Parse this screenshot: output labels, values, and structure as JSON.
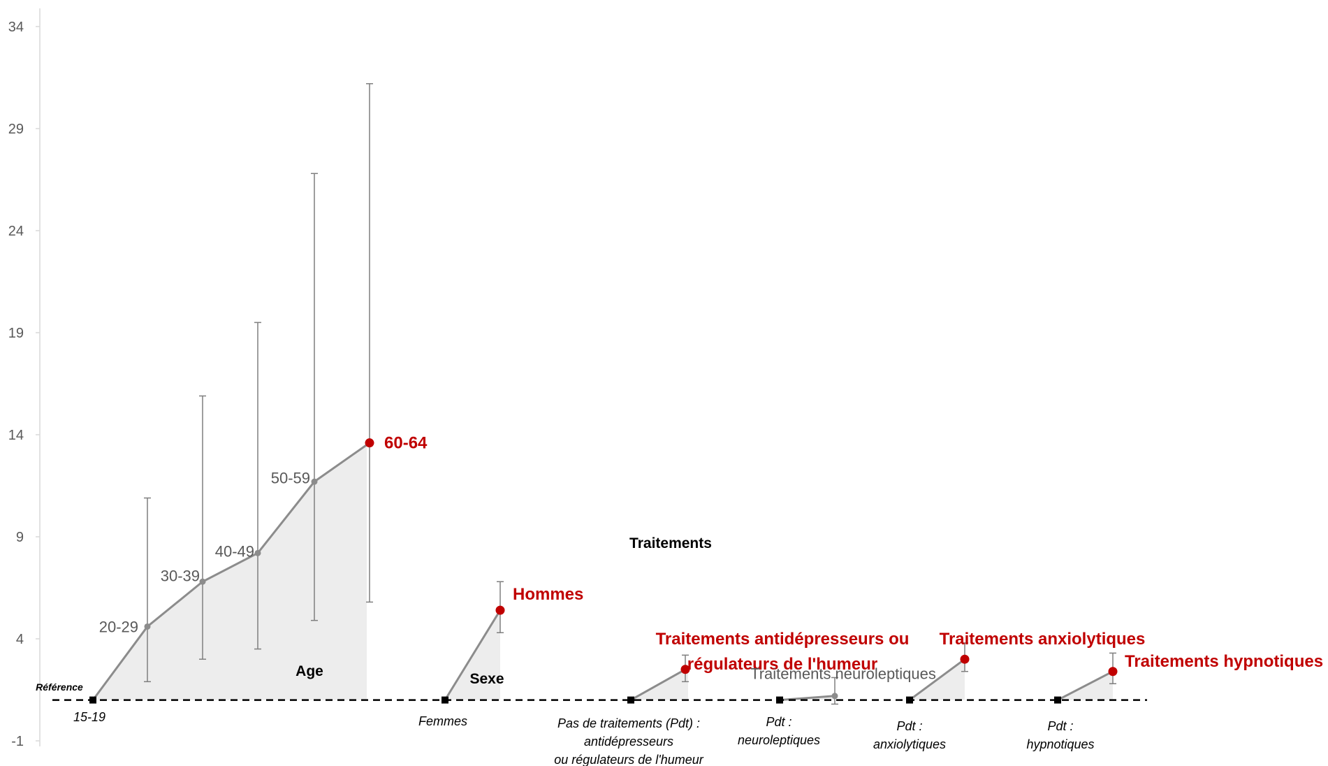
{
  "chart_data": {
    "type": "line",
    "y_ticks": [
      -1,
      4,
      9,
      14,
      19,
      24,
      29,
      34
    ],
    "ylim": [
      -1,
      35
    ],
    "grid": false,
    "reference_word": "Référence",
    "reference_value": 1,
    "traitements_title": "Traitements",
    "groups": [
      {
        "id": "age",
        "group_label": "Age",
        "reference_label": "15-19",
        "points": [
          {
            "label": "20-29",
            "value": 4.6,
            "ci_low": 1.9,
            "ci_high": 10.9,
            "significant": false
          },
          {
            "label": "30-39",
            "value": 6.8,
            "ci_low": 3.0,
            "ci_high": 15.9,
            "significant": false
          },
          {
            "label": "40-49",
            "value": 8.2,
            "ci_low": 3.5,
            "ci_high": 19.5,
            "significant": false
          },
          {
            "label": "50-59",
            "value": 11.7,
            "ci_low": 4.9,
            "ci_high": 26.8,
            "significant": false
          },
          {
            "label": "60-64",
            "value": 13.6,
            "ci_low": 5.8,
            "ci_high": 31.2,
            "significant": true
          }
        ]
      },
      {
        "id": "sexe",
        "group_label": "Sexe",
        "reference_label": "Femmes",
        "points": [
          {
            "label": "Hommes",
            "value": 5.4,
            "ci_low": 4.3,
            "ci_high": 6.8,
            "significant": true
          }
        ]
      },
      {
        "id": "antidep",
        "reference_label": "Pas de traitements (Pdt) :\nantidépresseurs\nou régulateurs de l'humeur",
        "points": [
          {
            "label": "Traitements antidépresseurs ou\nrégulateurs de l'humeur",
            "value": 2.5,
            "ci_low": 1.9,
            "ci_high": 3.2,
            "significant": true
          }
        ]
      },
      {
        "id": "neuro",
        "reference_label": "Pdt :\nneuroleptiques",
        "points": [
          {
            "label": "Traitements neuroleptiques",
            "value": 1.2,
            "ci_low": 0.8,
            "ci_high": 2.1,
            "significant": false
          }
        ]
      },
      {
        "id": "anxio",
        "reference_label": "Pdt :\nanxiolytiques",
        "points": [
          {
            "label": "Traitements anxiolytiques",
            "value": 3.0,
            "ci_low": 2.4,
            "ci_high": 3.8,
            "significant": true
          }
        ]
      },
      {
        "id": "hypno",
        "reference_label": "Pdt :\nhypnotiques",
        "points": [
          {
            "label": "Traitements hypnotiques",
            "value": 2.4,
            "ci_low": 1.8,
            "ci_high": 3.3,
            "significant": true
          }
        ]
      }
    ],
    "colors": {
      "line": "#8c8c8c",
      "fill": "#ededed",
      "significant": "#c00000",
      "errorbar": "#7f7f7f",
      "reference_marker": "#000000",
      "reference_line": "#000000"
    }
  }
}
